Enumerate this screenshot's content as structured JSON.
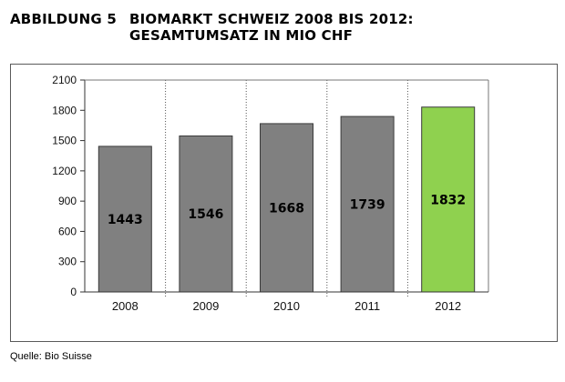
{
  "header": {
    "figure_label": "ABBILDUNG 5",
    "title_line1": "BIOMARKT SCHWEIZ 2008 BIS 2012:",
    "title_line2": "GESAMTUMSATZ IN MIO CHF"
  },
  "source": "Quelle: Bio Suisse",
  "chart_data": {
    "type": "bar",
    "title": "BIOMARKT SCHWEIZ 2008 BIS 2012: GESAMTUMSATZ IN MIO CHF",
    "xlabel": "",
    "ylabel": "",
    "categories": [
      "2008",
      "2009",
      "2010",
      "2011",
      "2012"
    ],
    "values": [
      1443,
      1546,
      1668,
      1739,
      1832
    ],
    "data_labels": [
      "1443",
      "1546",
      "1668",
      "1739",
      "1832"
    ],
    "ylim": [
      0,
      2100
    ],
    "yticks": [
      "0",
      "300",
      "600",
      "900",
      "1200",
      "1500",
      "1800",
      "2100"
    ],
    "grid": "vertical dotted separators between categories",
    "colors": {
      "bar": "#808080",
      "highlight_bar": "#8fd14f",
      "bar_edge": "#3a3a3a"
    },
    "highlight_index": 4
  }
}
